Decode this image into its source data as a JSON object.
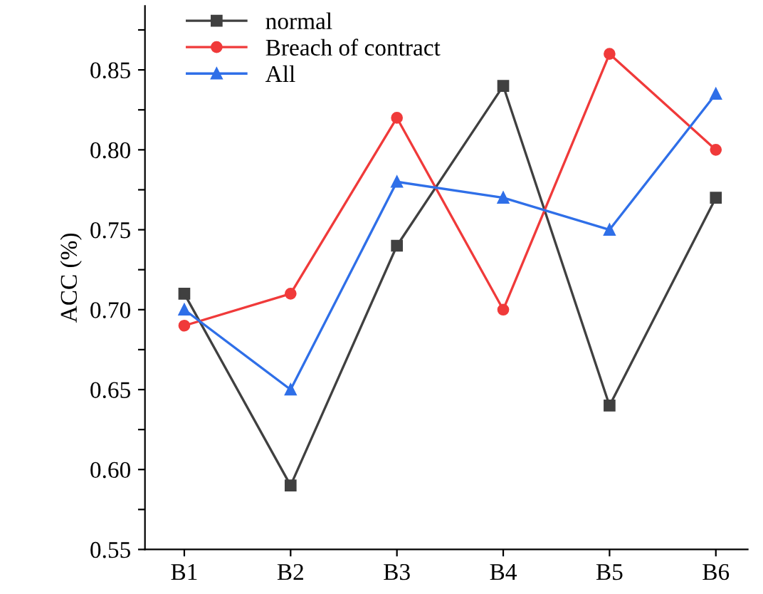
{
  "chart_data": {
    "type": "line",
    "ylabel": "ACC (%)",
    "categories": [
      "B1",
      "B2",
      "B3",
      "B4",
      "B5",
      "B6"
    ],
    "series": [
      {
        "name": "normal",
        "color": "#404040",
        "marker": "square",
        "values": [
          0.71,
          0.59,
          0.74,
          0.84,
          0.64,
          0.77
        ]
      },
      {
        "name": "Breach of contract",
        "color": "#f03a3a",
        "marker": "circle",
        "values": [
          0.69,
          0.71,
          0.82,
          0.7,
          0.86,
          0.8
        ]
      },
      {
        "name": "All",
        "color": "#2f6fe8",
        "marker": "triangle",
        "values": [
          0.7,
          0.65,
          0.78,
          0.77,
          0.75,
          0.835
        ]
      }
    ],
    "ylim": [
      0.55,
      0.89
    ],
    "yticks": [
      0.55,
      {
        "value": 0.575,
        "label": null
      },
      "0.60",
      {
        "value": 0.625,
        "label": null
      },
      0.65,
      {
        "value": 0.675,
        "label": null
      },
      "0.70",
      {
        "value": 0.725,
        "label": null
      },
      0.75,
      {
        "value": 0.775,
        "label": null
      },
      "0.80",
      {
        "value": 0.825,
        "label": null
      },
      0.85,
      {
        "value": 0.875,
        "label": null
      }
    ],
    "legend": "top left",
    "grid": false,
    "line_style": "solid"
  }
}
